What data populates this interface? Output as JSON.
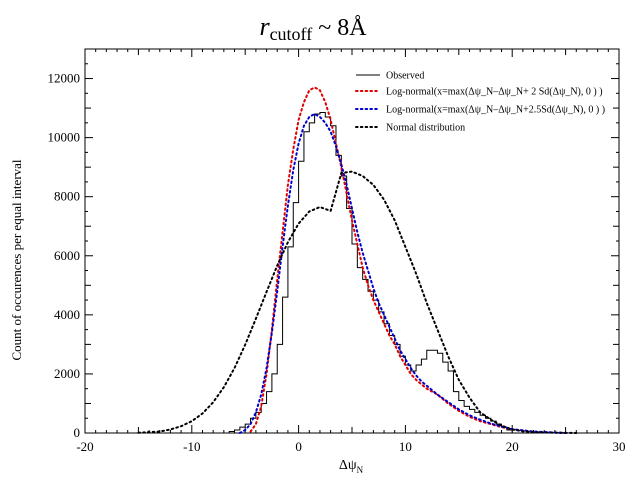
{
  "chart_data": {
    "type": "line",
    "title_symbol": "r",
    "title_subscript": "cutoff",
    "title_rest": " ~ 8Å",
    "xlabel_symbol": "Δψ",
    "xlabel_subscript": "N",
    "ylabel": "Count of occurences per equal interval",
    "xlim": [
      -20,
      30
    ],
    "ylim": [
      0,
      13000
    ],
    "x_ticks": [
      -20,
      -10,
      0,
      10,
      20,
      30
    ],
    "y_ticks": [
      0,
      2000,
      4000,
      6000,
      8000,
      10000,
      12000
    ],
    "grid": false,
    "legend_placement": "top-right",
    "legend": [
      {
        "key": "observed",
        "text": "Observed"
      },
      {
        "key": "lognormal2",
        "text": "Log-normal(x=max(Δψ_N–Δψ_N+ 2 Sd(Δψ_N), 0 ) )"
      },
      {
        "key": "lognormal25",
        "text": "Log-normal(x=max(Δψ_N–Δψ_N+2.5Sd(Δψ_N), 0 ) )"
      },
      {
        "key": "normal",
        "text": "Normal distribution"
      }
    ],
    "series": [
      {
        "key": "observed",
        "name": "Observed",
        "color": "#000000",
        "style": "step",
        "x": [
          -6.5,
          -6.0,
          -5.5,
          -5.0,
          -4.5,
          -4.0,
          -3.5,
          -3.0,
          -2.5,
          -2.0,
          -1.5,
          -1.0,
          -0.5,
          0.0,
          0.5,
          1.0,
          1.5,
          2.0,
          2.5,
          3.0,
          3.5,
          4.0,
          4.5,
          5.0,
          5.5,
          6.0,
          6.5,
          7.0,
          7.5,
          8.0,
          8.5,
          9.0,
          9.5,
          10.0,
          10.5,
          11.0,
          11.5,
          12.0,
          12.5,
          13.0,
          13.5,
          14.0,
          14.5,
          15.0,
          15.5,
          16.0,
          16.5,
          17.0,
          17.5,
          18.0,
          18.5,
          19.0,
          19.5,
          20.0
        ],
        "y": [
          50,
          100,
          200,
          300,
          500,
          700,
          1000,
          1400,
          2000,
          3000,
          4600,
          6300,
          7800,
          9200,
          10200,
          10500,
          10800,
          10850,
          10700,
          10400,
          9400,
          8700,
          7600,
          6400,
          5600,
          5200,
          4800,
          4500,
          4100,
          3700,
          3300,
          3000,
          2600,
          2300,
          2100,
          2300,
          2500,
          2800,
          2800,
          2700,
          2400,
          2100,
          1400,
          1100,
          900,
          800,
          700,
          600,
          500,
          400,
          300,
          200,
          100,
          0
        ]
      },
      {
        "key": "lognormal2",
        "name": "Log-normal 2 Sd",
        "color": "#e00000",
        "style": "dotted",
        "x": [
          -4.5,
          -4.0,
          -3.5,
          -3.0,
          -2.5,
          -2.0,
          -1.5,
          -1.0,
          -0.5,
          0.0,
          0.5,
          1.0,
          1.5,
          2.0,
          2.5,
          3.0,
          3.5,
          4.0,
          4.5,
          5.0,
          5.5,
          6.0,
          6.5,
          7.0,
          7.5,
          8.0,
          8.5,
          9.0,
          9.5,
          10.0,
          10.5,
          11.0,
          11.5,
          12.0,
          12.5,
          13.0,
          14.0,
          15.0,
          16.0,
          17.0,
          18.0,
          19.0,
          20.0,
          22.0,
          25.0
        ],
        "y": [
          50,
          300,
          900,
          2000,
          3500,
          5200,
          6800,
          8400,
          9600,
          10600,
          11200,
          11600,
          11700,
          11600,
          11200,
          10600,
          9800,
          9000,
          8100,
          7200,
          6400,
          5600,
          5000,
          4500,
          4100,
          3700,
          3300,
          3000,
          2600,
          2300,
          2000,
          1800,
          1650,
          1500,
          1400,
          1300,
          1000,
          750,
          550,
          400,
          300,
          200,
          120,
          40,
          0
        ]
      },
      {
        "key": "lognormal25",
        "name": "Log-normal 2.5 Sd",
        "color": "#0000cc",
        "style": "dotted",
        "x": [
          -5.5,
          -5.0,
          -4.5,
          -4.0,
          -3.5,
          -3.0,
          -2.5,
          -2.0,
          -1.5,
          -1.0,
          -0.5,
          0.0,
          0.5,
          1.0,
          1.5,
          2.0,
          2.5,
          3.0,
          3.5,
          4.0,
          4.5,
          5.0,
          5.5,
          6.0,
          6.5,
          7.0,
          7.5,
          8.0,
          8.5,
          9.0,
          9.5,
          10.0,
          10.5,
          11.0,
          11.5,
          12.0,
          12.5,
          13.0,
          14.0,
          15.0,
          16.0,
          17.0,
          18.0,
          19.0,
          20.0,
          22.0,
          25.0
        ],
        "y": [
          0,
          100,
          300,
          700,
          1300,
          2200,
          3400,
          4800,
          6300,
          7700,
          8900,
          9800,
          10400,
          10700,
          10800,
          10700,
          10500,
          10200,
          9700,
          9100,
          8400,
          7600,
          6800,
          6100,
          5500,
          4900,
          4400,
          4000,
          3600,
          3200,
          2800,
          2500,
          2200,
          1950,
          1750,
          1600,
          1450,
          1300,
          1050,
          800,
          600,
          450,
          320,
          220,
          130,
          50,
          0
        ]
      },
      {
        "key": "normal",
        "name": "Normal distribution",
        "color": "#000000",
        "style": "dotted",
        "x": [
          -15,
          -13,
          -12,
          -11,
          -10,
          -9,
          -8,
          -7,
          -6,
          -5,
          -4,
          -3,
          -2,
          -1,
          0,
          1,
          2,
          3,
          4,
          5,
          6,
          7,
          8,
          9,
          10,
          11,
          12,
          13,
          14,
          15,
          16,
          17,
          18,
          19,
          20,
          21,
          22,
          24,
          26
        ],
        "y": [
          10,
          50,
          120,
          230,
          400,
          660,
          1040,
          1550,
          2200,
          2990,
          3870,
          4780,
          5670,
          6460,
          7090,
          7500,
          7650,
          7520,
          8800,
          8850,
          8700,
          8400,
          7900,
          7200,
          6300,
          5400,
          4400,
          3500,
          2600,
          1800,
          1200,
          700,
          450,
          250,
          120,
          60,
          30,
          10,
          0
        ]
      }
    ]
  }
}
